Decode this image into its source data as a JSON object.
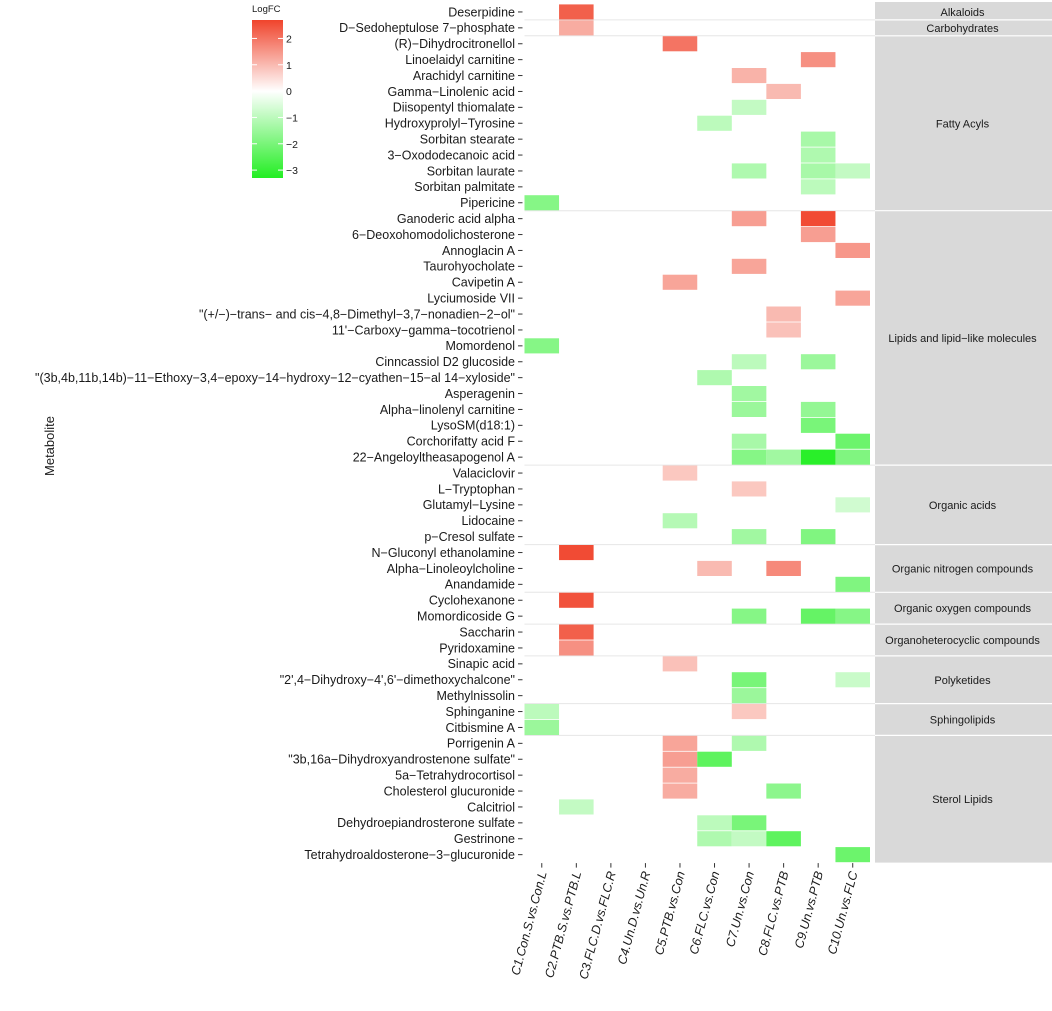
{
  "chart_data": {
    "type": "heatmap",
    "ylabel": "Metabolite",
    "legend": {
      "title": "LogFC",
      "ticks": [
        2,
        1,
        0,
        -1,
        -2,
        -3
      ],
      "range": [
        -3.3,
        2.7
      ]
    },
    "colors": {
      "high": "#f0442c",
      "mid": "#ffffff",
      "low": "#22ee22",
      "group_bg": "#d9d9d9",
      "divider": "#e6e6e6"
    },
    "columns": [
      "C1.Con.S.vs.Con.L",
      "C2.PTB.S.vs.PTB.L",
      "C3.FLC.D.vs.FLC.R",
      "C4.Un.D.vs.Un.R",
      "C5.PTB.vs.Con",
      "C6.FLC.vs.Con",
      "C7.Un.vs.Con",
      "C8.FLC.vs.PTB",
      "C9.Un.vs.PTB",
      "C10.Un.vs.FLC"
    ],
    "groups": [
      {
        "name": "Alkaloids",
        "rows": [
          {
            "name": "Deserpidine",
            "values": [
              null,
              2.3,
              null,
              null,
              null,
              null,
              null,
              null,
              null,
              null
            ]
          }
        ]
      },
      {
        "name": "Carbohydrates",
        "rows": [
          {
            "name": "D−Sedoheptulose 7−phosphate",
            "values": [
              null,
              1.2,
              null,
              null,
              null,
              null,
              null,
              null,
              null,
              null
            ]
          }
        ]
      },
      {
        "name": "Fatty Acyls",
        "rows": [
          {
            "name": "(R)−Dihydrocitronellol",
            "values": [
              null,
              null,
              null,
              null,
              2.0,
              null,
              null,
              null,
              null,
              null
            ]
          },
          {
            "name": "Linoelaidyl carnitine",
            "values": [
              null,
              null,
              null,
              null,
              null,
              null,
              null,
              null,
              1.6,
              null
            ]
          },
          {
            "name": "Arachidyl carnitine",
            "values": [
              null,
              null,
              null,
              null,
              null,
              null,
              1.1,
              null,
              null,
              null
            ]
          },
          {
            "name": "Gamma−Linolenic acid",
            "values": [
              null,
              null,
              null,
              null,
              null,
              null,
              null,
              1.0,
              null,
              null
            ]
          },
          {
            "name": "Diisopentyl thiomalate",
            "values": [
              null,
              null,
              null,
              null,
              null,
              null,
              -0.9,
              null,
              null,
              null
            ]
          },
          {
            "name": "Hydroxyprolyl−Tyrosine",
            "values": [
              null,
              null,
              null,
              null,
              null,
              -1.0,
              null,
              null,
              null,
              null
            ]
          },
          {
            "name": "Sorbitan stearate",
            "values": [
              null,
              null,
              null,
              null,
              null,
              null,
              null,
              null,
              -1.3,
              null
            ]
          },
          {
            "name": "3−Oxododecanoic acid",
            "values": [
              null,
              null,
              null,
              null,
              null,
              null,
              null,
              null,
              -1.2,
              null
            ]
          },
          {
            "name": "Sorbitan laurate",
            "values": [
              null,
              null,
              null,
              null,
              null,
              null,
              -1.2,
              null,
              -1.3,
              -0.9
            ]
          },
          {
            "name": "Sorbitan palmitate",
            "values": [
              null,
              null,
              null,
              null,
              null,
              null,
              null,
              null,
              -1.0,
              null
            ]
          },
          {
            "name": "Pipericine",
            "values": [
              -1.8,
              null,
              null,
              null,
              null,
              null,
              null,
              null,
              null,
              null
            ]
          }
        ]
      },
      {
        "name": "Lipids and lipid−like molecules",
        "rows": [
          {
            "name": "Ganoderic acid alpha",
            "values": [
              null,
              null,
              null,
              null,
              null,
              null,
              1.4,
              null,
              2.6,
              null
            ]
          },
          {
            "name": "6−Deoxohomodolichosterone",
            "values": [
              null,
              null,
              null,
              null,
              null,
              null,
              null,
              null,
              1.4,
              null
            ]
          },
          {
            "name": "Annoglacin A",
            "values": [
              null,
              null,
              null,
              null,
              null,
              null,
              null,
              null,
              null,
              1.5
            ]
          },
          {
            "name": "Taurohyocholate",
            "values": [
              null,
              null,
              null,
              null,
              null,
              null,
              1.3,
              null,
              null,
              null
            ]
          },
          {
            "name": "Cavipetin A",
            "values": [
              null,
              null,
              null,
              null,
              1.3,
              null,
              null,
              null,
              null,
              null
            ]
          },
          {
            "name": "Lyciumoside VII",
            "values": [
              null,
              null,
              null,
              null,
              null,
              null,
              null,
              null,
              null,
              1.3
            ]
          },
          {
            "name": "\"(+/−)−trans− and cis−4,8−Dimethyl−3,7−nonadien−2−ol\"",
            "values": [
              null,
              null,
              null,
              null,
              null,
              null,
              null,
              1.0,
              null,
              null
            ]
          },
          {
            "name": "11'−Carboxy−gamma−tocotrienol",
            "values": [
              null,
              null,
              null,
              null,
              null,
              null,
              null,
              0.9,
              null,
              null
            ]
          },
          {
            "name": "Momordenol",
            "values": [
              -1.8,
              null,
              null,
              null,
              null,
              null,
              null,
              null,
              null,
              null
            ]
          },
          {
            "name": "Cinncassiol D2 glucoside",
            "values": [
              null,
              null,
              null,
              null,
              null,
              null,
              -1.0,
              null,
              -1.5,
              null
            ]
          },
          {
            "name": "\"(3b,4b,11b,14b)−11−Ethoxy−3,4−epoxy−14−hydroxy−12−cyathen−15−al 14−xyloside\"",
            "values": [
              null,
              null,
              null,
              null,
              null,
              -1.2,
              null,
              null,
              null,
              null
            ]
          },
          {
            "name": "Asperagenin",
            "values": [
              null,
              null,
              null,
              null,
              null,
              null,
              -1.4,
              null,
              null,
              null
            ]
          },
          {
            "name": "Alpha−linolenyl carnitine",
            "values": [
              null,
              null,
              null,
              null,
              null,
              null,
              -1.5,
              null,
              -1.6,
              null
            ]
          },
          {
            "name": "LysoSM(d18:1)",
            "values": [
              null,
              null,
              null,
              null,
              null,
              null,
              null,
              null,
              -2.0,
              null
            ]
          },
          {
            "name": "Corchorifatty acid F",
            "values": [
              null,
              null,
              null,
              null,
              null,
              null,
              -1.3,
              null,
              null,
              -2.2
            ]
          },
          {
            "name": "22−Angeloyltheasapogenol A",
            "values": [
              null,
              null,
              null,
              null,
              null,
              null,
              -1.8,
              -1.4,
              -3.2,
              -1.9
            ]
          }
        ]
      },
      {
        "name": "Organic acids",
        "rows": [
          {
            "name": "Valaciclovir",
            "values": [
              null,
              null,
              null,
              null,
              0.8,
              null,
              null,
              null,
              null,
              null
            ]
          },
          {
            "name": "L−Tryptophan",
            "values": [
              null,
              null,
              null,
              null,
              null,
              null,
              0.8,
              null,
              null,
              null
            ]
          },
          {
            "name": "Glutamyl−Lysine",
            "values": [
              null,
              null,
              null,
              null,
              null,
              null,
              null,
              null,
              null,
              -0.7
            ]
          },
          {
            "name": "Lidocaine",
            "values": [
              null,
              null,
              null,
              null,
              -1.1,
              null,
              null,
              null,
              null,
              null
            ]
          },
          {
            "name": "p−Cresol sulfate",
            "values": [
              null,
              null,
              null,
              null,
              null,
              null,
              -1.4,
              null,
              -1.9,
              null
            ]
          }
        ]
      },
      {
        "name": "Organic nitrogen compounds",
        "rows": [
          {
            "name": "N−Gluconyl ethanolamine",
            "values": [
              null,
              2.6,
              null,
              null,
              null,
              null,
              null,
              null,
              null,
              null
            ]
          },
          {
            "name": "Alpha−Linoleoylcholine",
            "values": [
              null,
              null,
              null,
              null,
              null,
              1.0,
              null,
              1.7,
              null,
              null
            ]
          },
          {
            "name": "Anandamide",
            "values": [
              null,
              null,
              null,
              null,
              null,
              null,
              null,
              null,
              null,
              -1.9
            ]
          }
        ]
      },
      {
        "name": "Organic oxygen compounds",
        "rows": [
          {
            "name": "Cyclohexanone",
            "values": [
              null,
              2.5,
              null,
              null,
              null,
              null,
              null,
              null,
              null,
              null
            ]
          },
          {
            "name": "Momordicoside G",
            "values": [
              null,
              null,
              null,
              null,
              null,
              null,
              -1.8,
              null,
              -2.3,
              -1.8
            ]
          }
        ]
      },
      {
        "name": "Organoheterocyclic compounds",
        "rows": [
          {
            "name": "Saccharin",
            "values": [
              null,
              2.3,
              null,
              null,
              null,
              null,
              null,
              null,
              null,
              null
            ]
          },
          {
            "name": "Pyridoxamine",
            "values": [
              null,
              1.6,
              null,
              null,
              null,
              null,
              null,
              null,
              null,
              null
            ]
          }
        ]
      },
      {
        "name": "Polyketides",
        "rows": [
          {
            "name": "Sinapic acid",
            "values": [
              null,
              null,
              null,
              null,
              0.9,
              null,
              null,
              null,
              null,
              null
            ]
          },
          {
            "name": "\"2',4−Dihydroxy−4',6'−dimethoxychalcone\"",
            "values": [
              null,
              null,
              null,
              null,
              null,
              null,
              -2.0,
              null,
              null,
              -0.8
            ]
          },
          {
            "name": "Methylnissolin",
            "values": [
              null,
              null,
              null,
              null,
              null,
              null,
              -1.5,
              null,
              null,
              null
            ]
          }
        ]
      },
      {
        "name": "Sphingolipids",
        "rows": [
          {
            "name": "Sphinganine",
            "values": [
              -1.0,
              null,
              null,
              null,
              null,
              null,
              0.8,
              null,
              null,
              null
            ]
          },
          {
            "name": "Citbismine A",
            "values": [
              -1.5,
              null,
              null,
              null,
              null,
              null,
              null,
              null,
              null,
              null
            ]
          }
        ]
      },
      {
        "name": "Sterol Lipids",
        "rows": [
          {
            "name": "Porrigenin A",
            "values": [
              null,
              null,
              null,
              null,
              1.3,
              null,
              -1.2,
              null,
              null,
              null
            ]
          },
          {
            "name": "\"3b,16a−Dihydroxyandrostenone sulfate\"",
            "values": [
              null,
              null,
              null,
              null,
              1.4,
              -2.4,
              null,
              null,
              null,
              null
            ]
          },
          {
            "name": "5a−Tetrahydrocortisol",
            "values": [
              null,
              null,
              null,
              null,
              1.2,
              null,
              null,
              null,
              null,
              null
            ]
          },
          {
            "name": "Cholesterol glucuronide",
            "values": [
              null,
              null,
              null,
              null,
              1.2,
              null,
              null,
              -1.7,
              null,
              null
            ]
          },
          {
            "name": "Calcitriol",
            "values": [
              null,
              -0.9,
              null,
              null,
              null,
              null,
              null,
              null,
              null,
              null
            ]
          },
          {
            "name": "Dehydroepiandrosterone sulfate",
            "values": [
              null,
              null,
              null,
              null,
              null,
              -1.0,
              -2.0,
              null,
              null,
              null
            ]
          },
          {
            "name": "Gestrinone",
            "values": [
              null,
              null,
              null,
              null,
              null,
              -1.2,
              -0.9,
              -2.4,
              null,
              null
            ]
          },
          {
            "name": "Tetrahydroaldosterone−3−glucuronide",
            "values": [
              null,
              null,
              null,
              null,
              null,
              null,
              null,
              null,
              null,
              -2.2
            ]
          }
        ]
      }
    ]
  }
}
